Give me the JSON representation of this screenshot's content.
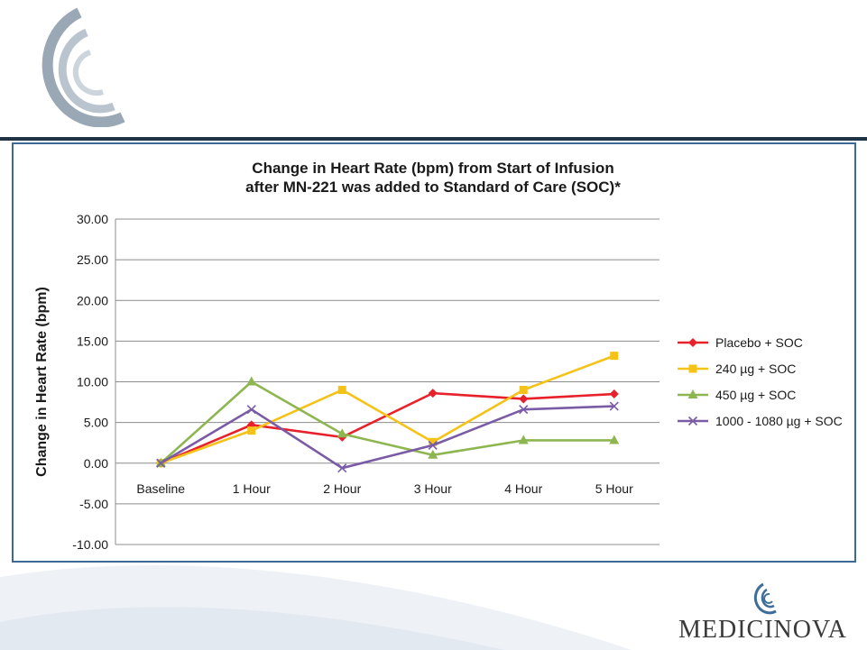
{
  "brand": {
    "name": "MEDICINOVA"
  },
  "chart_data": {
    "type": "line",
    "title_lines": [
      "Change in Heart Rate (bpm) from Start of Infusion",
      "after MN-221 was added to Standard of Care (SOC)*"
    ],
    "xlabel": "",
    "ylabel": "Change in Heart Rate (bpm)",
    "categories": [
      "Baseline",
      "1 Hour",
      "2 Hour",
      "3 Hour",
      "4 Hour",
      "5 Hour"
    ],
    "ylim": [
      -10,
      30
    ],
    "yticks": [
      "30.00",
      "25.00",
      "20.00",
      "15.00",
      "10.00",
      "5.00",
      "0.00",
      "-5.00",
      "-10.00"
    ],
    "grid": true,
    "legend_position": "right",
    "series": [
      {
        "name": "Placebo + SOC",
        "color": "#e8202a",
        "marker": "diamond",
        "values": [
          0,
          4.7,
          3.2,
          8.6,
          7.9,
          8.5
        ]
      },
      {
        "name": "240 µg + SOC",
        "color": "#f5c218",
        "marker": "square",
        "values": [
          0,
          4.0,
          9.0,
          2.6,
          9.0,
          13.2
        ]
      },
      {
        "name": "450 µg + SOC",
        "color": "#8db651",
        "marker": "triangle",
        "values": [
          0,
          10.0,
          3.6,
          1.0,
          2.8,
          2.8
        ]
      },
      {
        "name": "1000 - 1080 µg + SOC",
        "color": "#7a5ba6",
        "marker": "x",
        "values": [
          0,
          6.6,
          -0.6,
          2.2,
          6.6,
          7.0
        ]
      }
    ]
  }
}
